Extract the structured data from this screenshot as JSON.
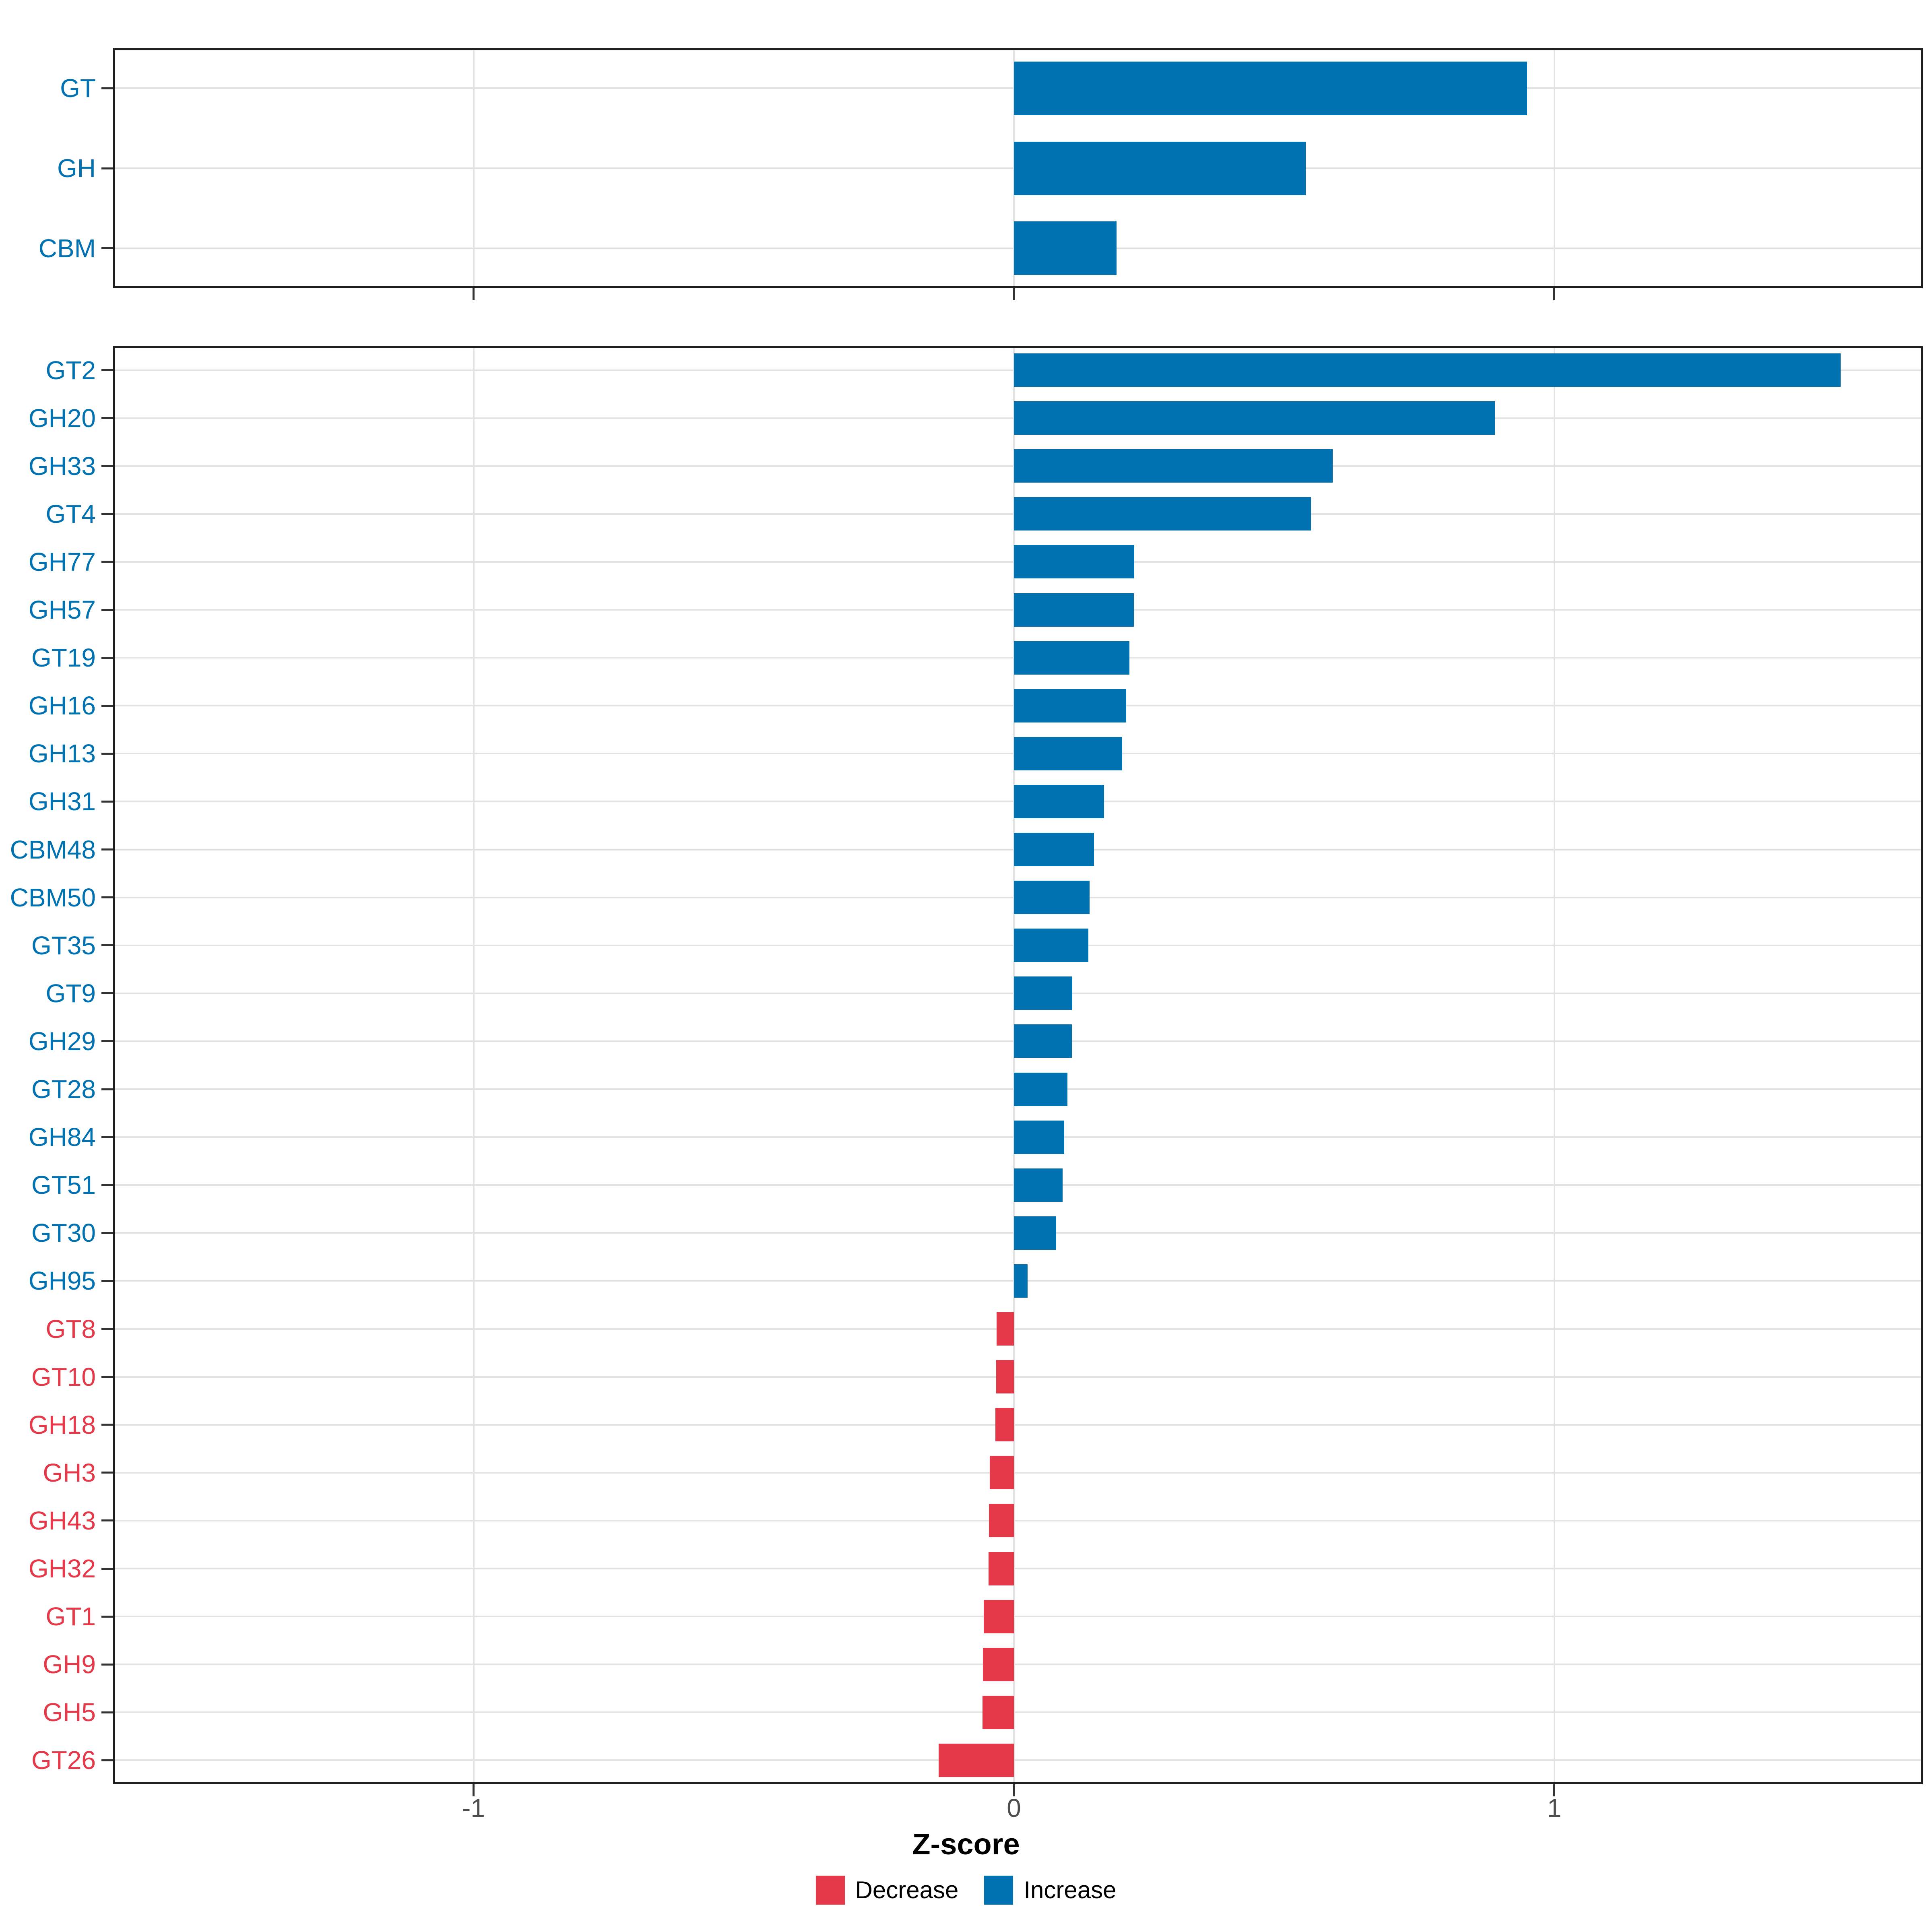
{
  "figure": {
    "background": "#ffffff",
    "accent_increase": "#0072B2",
    "accent_decrease": "#E53849",
    "axis": {
      "xlabel": "Z-score"
    },
    "legend": {
      "position": "bottom",
      "items": [
        {
          "label": "Decrease",
          "color": "#E53849"
        },
        {
          "label": "Increase",
          "color": "#0072B2"
        }
      ]
    }
  },
  "chart_data": [
    {
      "type": "bar",
      "orientation": "horizontal",
      "panel": "top",
      "title": "",
      "categories": [
        "GT",
        "GH",
        "CBM"
      ],
      "values": [
        0.95,
        0.54,
        0.19
      ],
      "series_rule": "blue #0072B2 when value >= 0 (Increase), red #E53849 when value < 0 (Decrease)",
      "xlim": [
        -1.67,
        1.68
      ],
      "x_ticks": [
        -1,
        0,
        1
      ],
      "grid": "major only"
    },
    {
      "type": "bar",
      "orientation": "horizontal",
      "panel": "bottom",
      "title": "",
      "categories": [
        "GT2",
        "GH20",
        "GH33",
        "GT4",
        "GH77",
        "GH57",
        "GT19",
        "GH16",
        "GH13",
        "GH31",
        "CBM48",
        "CBM50",
        "GT35",
        "GT9",
        "GH29",
        "GT28",
        "GH84",
        "GT51",
        "GT30",
        "GH95",
        "GT8",
        "GT10",
        "GH18",
        "GH3",
        "GH43",
        "GH32",
        "GT1",
        "GH9",
        "GH5",
        "GT26"
      ],
      "values": [
        1.53,
        0.89,
        0.59,
        0.55,
        0.223,
        0.222,
        0.214,
        0.208,
        0.2,
        0.167,
        0.148,
        0.14,
        0.138,
        0.108,
        0.107,
        0.099,
        0.093,
        0.09,
        0.078,
        0.025,
        -0.032,
        -0.033,
        -0.034,
        -0.045,
        -0.046,
        -0.047,
        -0.056,
        -0.057,
        -0.058,
        -0.139
      ],
      "series_rule": "blue #0072B2 when value >= 0 (Increase), red #E53849 when value < 0 (Decrease)",
      "xlabel": "Z-score",
      "xlim": [
        -1.67,
        1.68
      ],
      "x_ticks": [
        -1,
        0,
        1
      ],
      "x_tick_labels": [
        "-1",
        "0",
        "1"
      ],
      "grid": "major only",
      "legend_position": "bottom"
    }
  ]
}
